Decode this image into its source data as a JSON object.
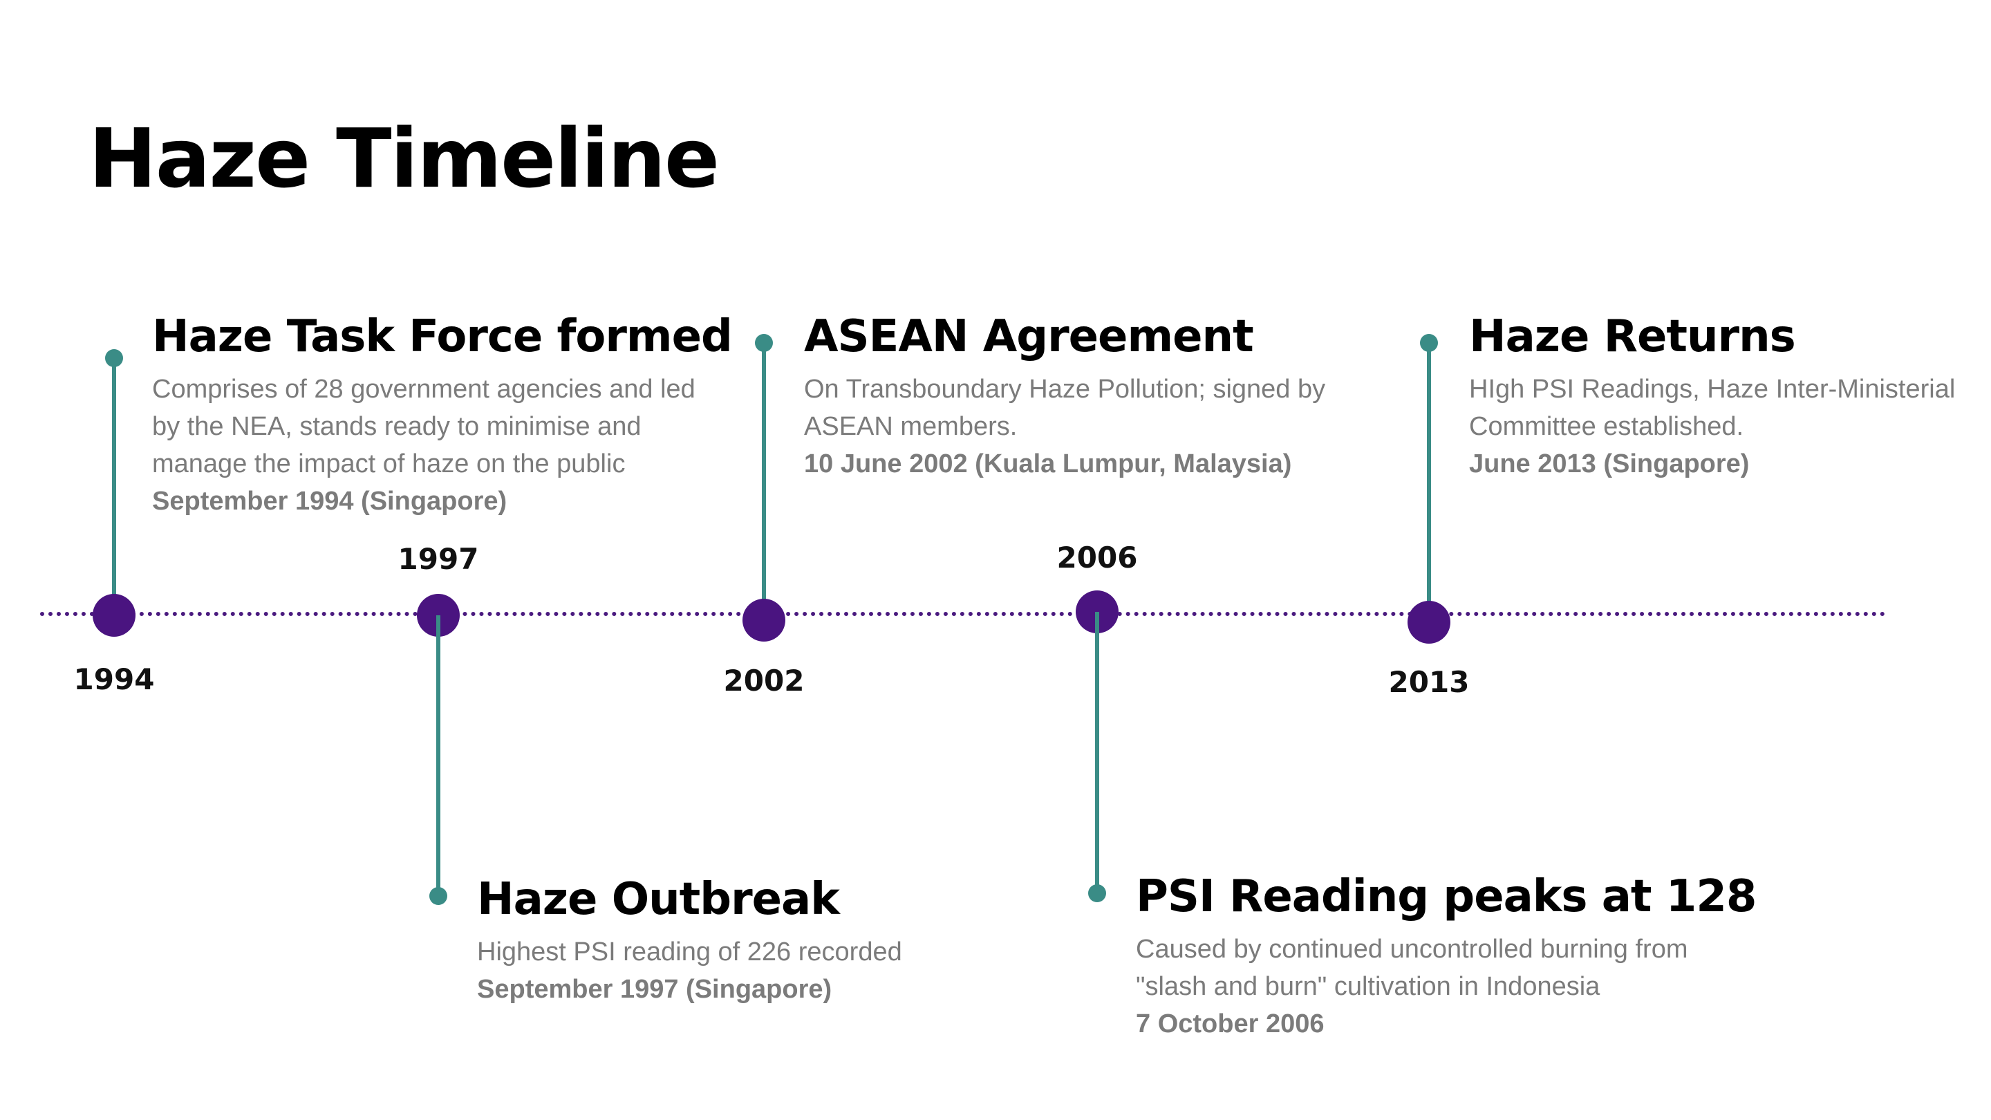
{
  "title": "Haze Timeline",
  "colors": {
    "node": "#4a1480",
    "stem": "#3a8c86",
    "axis": "#4a1a7f",
    "title_text": "#000000",
    "body_text": "#7b7b7b"
  },
  "events": [
    {
      "year": "1994",
      "title": "Haze Task Force formed",
      "description": "Comprises of 28 government agencies and led by the NEA, stands ready to minimise and manage the impact of haze on the public",
      "meta": "September 1994 (Singapore)"
    },
    {
      "year": "1997",
      "title": "Haze Outbreak",
      "description": "Highest PSI reading of 226 recorded",
      "meta": "September 1997 (Singapore)"
    },
    {
      "year": "2002",
      "title": "ASEAN Agreement",
      "description": "On Transboundary Haze Pollution; signed by ASEAN members.",
      "meta": "10 June 2002 (Kuala Lumpur, Malaysia)"
    },
    {
      "year": "2006",
      "title": "PSI Reading peaks at 128",
      "description": "Caused by continued uncontrolled burning from \"slash and burn\" cultivation in Indonesia",
      "meta": "7 October 2006"
    },
    {
      "year": "2013",
      "title": "Haze Returns",
      "description": "HIgh PSI Readings, Haze Inter-Ministerial Committee established.",
      "meta": "June 2013 (Singapore)"
    }
  ]
}
